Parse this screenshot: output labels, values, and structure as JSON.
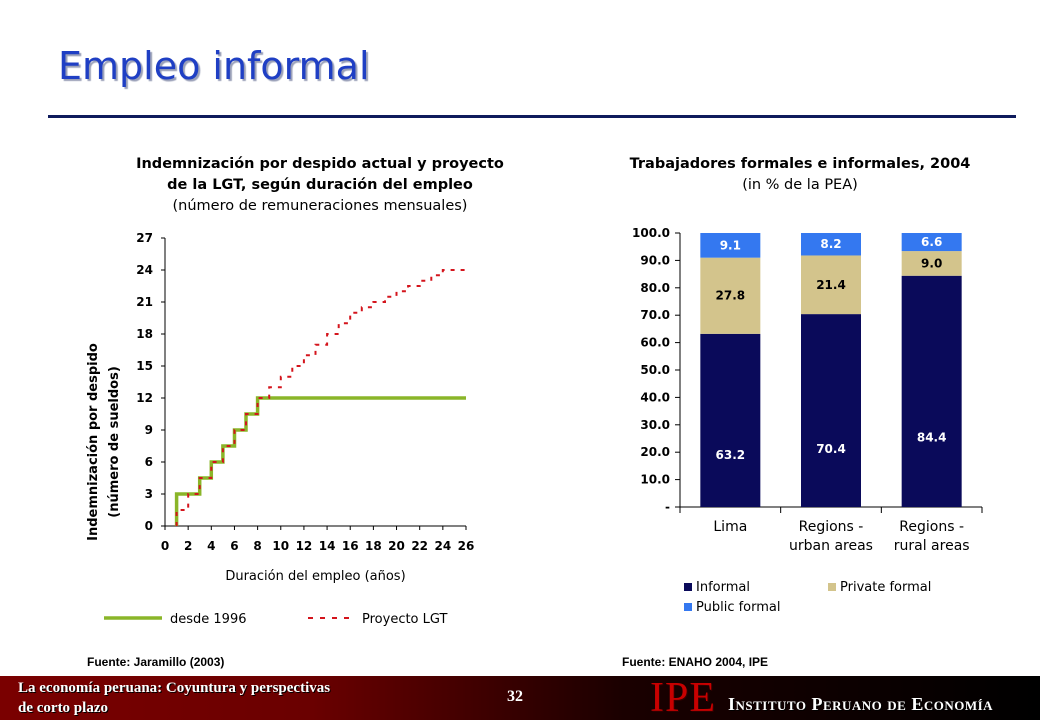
{
  "slide": {
    "title": "Empleo informal",
    "page_number": "32",
    "footer_line1": "La economía peruana: Coyuntura y perspectivas",
    "footer_line2": "de corto plazo",
    "logo_acronym": "IPE",
    "logo_name": "Instituto Peruano de Economía",
    "colors": {
      "title": "#1f3fc4",
      "rule": "#0f1b5c",
      "footer": "#6a0000",
      "logo": "#c80000"
    }
  },
  "left": {
    "title_line1": "Indemnización por despido actual y proyecto",
    "title_line2": "de la LGT, según duración del empleo",
    "subtitle": "(número de remuneraciones mensuales)",
    "source": "Fuente: Jaramillo (2003)"
  },
  "right": {
    "title": "Trabajadores formales e informales, 2004",
    "subtitle": "(in % de la PEA)",
    "source": "Fuente: ENAHO 2004, IPE"
  },
  "chart_data": [
    {
      "type": "line",
      "xlabel": "Duración del empleo (años)",
      "ylabel_line1": "Indemnización por despido",
      "ylabel_line2": "(número de sueldos)",
      "xlim": [
        0,
        26
      ],
      "ylim": [
        0,
        27
      ],
      "x_ticks": [
        "0",
        "2",
        "4",
        "6",
        "8",
        "10",
        "12",
        "14",
        "16",
        "18",
        "20",
        "22",
        "24",
        "26"
      ],
      "y_ticks": [
        "0",
        "3",
        "6",
        "9",
        "12",
        "15",
        "18",
        "21",
        "24",
        "27"
      ],
      "series": [
        {
          "name": "desde 1996",
          "color": "#8ab529",
          "style": "solid",
          "points": [
            [
              1,
              0
            ],
            [
              1,
              3
            ],
            [
              3,
              3
            ],
            [
              3,
              4.5
            ],
            [
              4,
              4.5
            ],
            [
              4,
              6
            ],
            [
              5,
              6
            ],
            [
              5,
              7.5
            ],
            [
              6,
              7.5
            ],
            [
              6,
              9
            ],
            [
              7,
              9
            ],
            [
              7,
              10.5
            ],
            [
              8,
              10.5
            ],
            [
              8,
              12
            ],
            [
              26,
              12
            ]
          ]
        },
        {
          "name": "Proyecto LGT",
          "color": "#d4141c",
          "style": "dashed",
          "points": [
            [
              1,
              0
            ],
            [
              1,
              1.5
            ],
            [
              2,
              1.5
            ],
            [
              2,
              3
            ],
            [
              3,
              3
            ],
            [
              3,
              4.5
            ],
            [
              4,
              4.5
            ],
            [
              4,
              6
            ],
            [
              5,
              6
            ],
            [
              5,
              7.5
            ],
            [
              6,
              7.5
            ],
            [
              6,
              9
            ],
            [
              7,
              9
            ],
            [
              7,
              10.5
            ],
            [
              8,
              10.5
            ],
            [
              8,
              12
            ],
            [
              9,
              12
            ],
            [
              9,
              13
            ],
            [
              10,
              13
            ],
            [
              10,
              14
            ],
            [
              11,
              14
            ],
            [
              11,
              15
            ],
            [
              12,
              15
            ],
            [
              12,
              16
            ],
            [
              13,
              16
            ],
            [
              13,
              17
            ],
            [
              14,
              17
            ],
            [
              14,
              18
            ],
            [
              15,
              18
            ],
            [
              15,
              19
            ],
            [
              16,
              19
            ],
            [
              16,
              20
            ],
            [
              17,
              20
            ],
            [
              17,
              20.5
            ],
            [
              18,
              20.5
            ],
            [
              18,
              21
            ],
            [
              19,
              21
            ],
            [
              19,
              21.5
            ],
            [
              20,
              21.5
            ],
            [
              20,
              22
            ],
            [
              21,
              22
            ],
            [
              21,
              22.5
            ],
            [
              22,
              22.5
            ],
            [
              22,
              23
            ],
            [
              23,
              23
            ],
            [
              23,
              23.5
            ],
            [
              24,
              23.5
            ],
            [
              24,
              24
            ],
            [
              26,
              24
            ]
          ]
        }
      ],
      "legend_position": "bottom"
    },
    {
      "type": "bar",
      "stacked": true,
      "categories": [
        [
          "Lima"
        ],
        [
          "Regions -",
          "urban areas"
        ],
        [
          "Regions -",
          "rural areas"
        ]
      ],
      "ylim": [
        0,
        100
      ],
      "y_ticks": [
        "-",
        "10.0",
        "20.0",
        "30.0",
        "40.0",
        "50.0",
        "60.0",
        "70.0",
        "80.0",
        "90.0",
        "100.0"
      ],
      "series": [
        {
          "name": "Informal",
          "color": "#0a0a5a",
          "values": [
            63.2,
            70.4,
            84.4
          ],
          "labels": [
            "63.2",
            "70.4",
            "84.4"
          ]
        },
        {
          "name": "Private formal",
          "color": "#d3c48c",
          "values": [
            27.8,
            21.4,
            9.0
          ],
          "labels": [
            "27.8",
            "21.4",
            "9.0"
          ]
        },
        {
          "name": "Public formal",
          "color": "#3478f0",
          "values": [
            9.1,
            8.2,
            6.6
          ],
          "labels": [
            "9.1",
            "8.2",
            "6.6"
          ]
        }
      ],
      "legend_position": "bottom"
    }
  ]
}
